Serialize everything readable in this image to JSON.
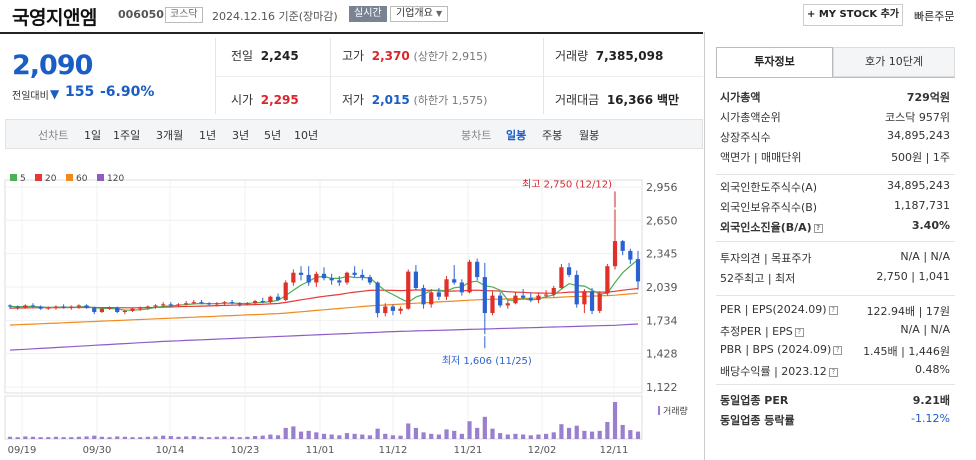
{
  "header": {
    "name": "국영지앤엠",
    "code": "006050",
    "market": "코스닥",
    "date": "2024.12.16",
    "basis": "기준(장마감)",
    "live_label": "실시간",
    "corp_label": "기업개요",
    "mystock_label": "+ MY STOCK 추가",
    "quick_order": "빠른주문"
  },
  "quote": {
    "price": "2,090",
    "compare_label": "전일대비",
    "compare_value": "155",
    "compare_pct": "-6.90%",
    "prev_close_label": "전일",
    "prev_close": "2,245",
    "open_label": "시가",
    "open": "2,295",
    "high_label": "고가",
    "high": "2,370",
    "upper_limit": "(상한가 2,915)",
    "low_label": "저가",
    "low": "2,015",
    "lower_limit": "(하한가 1,575)",
    "volume_label": "거래량",
    "volume": "7,385,098",
    "amount_label": "거래대금",
    "amount": "16,366",
    "amount_unit": "백만"
  },
  "tabs": {
    "line_chart": "선차트",
    "line_periods": [
      "1일",
      "1주일",
      "3개월",
      "1년",
      "3년",
      "5년",
      "10년"
    ],
    "candle_chart": "봉차트",
    "candle_periods": [
      "일봉",
      "주봉",
      "월봉"
    ],
    "active": "일봉"
  },
  "chart_data": {
    "type": "line",
    "legend": [
      {
        "name": "5",
        "color": "#4caf50"
      },
      {
        "name": "20",
        "color": "#e53935"
      },
      {
        "name": "60",
        "color": "#f08a1e"
      },
      {
        "name": "120",
        "color": "#8e5cc9"
      }
    ],
    "y_ticks": [
      "2,956",
      "2,650",
      "2,345",
      "2,039",
      "1,734",
      "1,428",
      "1,122"
    ],
    "ylim": [
      1122,
      2956
    ],
    "x_ticks": [
      "09/19",
      "09/30",
      "10/14",
      "10/23",
      "11/01",
      "11/12",
      "11/21",
      "12/02",
      "12/11"
    ],
    "high_annotation": "최고 2,750 (12/12)",
    "low_annotation": "최저 1,606 (11/25)",
    "volume_label": "거래량",
    "candles": [
      [
        1870,
        1880,
        1840,
        1860
      ],
      [
        1860,
        1870,
        1830,
        1850
      ],
      [
        1850,
        1880,
        1840,
        1870
      ],
      [
        1870,
        1890,
        1850,
        1860
      ],
      [
        1860,
        1870,
        1830,
        1840
      ],
      [
        1840,
        1860,
        1830,
        1850
      ],
      [
        1850,
        1870,
        1830,
        1860
      ],
      [
        1860,
        1880,
        1840,
        1850
      ],
      [
        1850,
        1870,
        1830,
        1860
      ],
      [
        1860,
        1880,
        1840,
        1870
      ],
      [
        1870,
        1880,
        1840,
        1850
      ],
      [
        1850,
        1860,
        1790,
        1810
      ],
      [
        1810,
        1850,
        1800,
        1840
      ],
      [
        1840,
        1860,
        1830,
        1850
      ],
      [
        1850,
        1860,
        1800,
        1810
      ],
      [
        1810,
        1830,
        1790,
        1820
      ],
      [
        1820,
        1850,
        1810,
        1840
      ],
      [
        1840,
        1860,
        1820,
        1850
      ],
      [
        1850,
        1870,
        1830,
        1860
      ],
      [
        1860,
        1880,
        1840,
        1870
      ],
      [
        1870,
        1900,
        1850,
        1880
      ],
      [
        1880,
        1900,
        1860,
        1870
      ],
      [
        1870,
        1890,
        1860,
        1880
      ],
      [
        1880,
        1910,
        1870,
        1890
      ],
      [
        1890,
        1920,
        1880,
        1900
      ],
      [
        1900,
        1920,
        1880,
        1890
      ],
      [
        1890,
        1900,
        1870,
        1880
      ],
      [
        1880,
        1900,
        1860,
        1890
      ],
      [
        1890,
        1910,
        1870,
        1900
      ],
      [
        1900,
        1920,
        1880,
        1890
      ],
      [
        1890,
        1900,
        1860,
        1880
      ],
      [
        1880,
        1900,
        1870,
        1890
      ],
      [
        1890,
        1920,
        1880,
        1910
      ],
      [
        1910,
        1940,
        1890,
        1900
      ],
      [
        1900,
        1960,
        1890,
        1950
      ],
      [
        1950,
        1980,
        1910,
        1920
      ],
      [
        1920,
        2100,
        1910,
        2080
      ],
      [
        2080,
        2200,
        2050,
        2170
      ],
      [
        2170,
        2230,
        2100,
        2150
      ],
      [
        2150,
        2230,
        2050,
        2080
      ],
      [
        2080,
        2180,
        2040,
        2160
      ],
      [
        2160,
        2220,
        2100,
        2120
      ],
      [
        2120,
        2160,
        2060,
        2100
      ],
      [
        2100,
        2140,
        2050,
        2080
      ],
      [
        2080,
        2180,
        2060,
        2170
      ],
      [
        2170,
        2230,
        2130,
        2150
      ],
      [
        2150,
        2200,
        2100,
        2130
      ],
      [
        2130,
        2150,
        2060,
        2080
      ],
      [
        2080,
        2090,
        1760,
        1800
      ],
      [
        1800,
        1890,
        1770,
        1860
      ],
      [
        1860,
        1880,
        1780,
        1820
      ],
      [
        1820,
        1860,
        1790,
        1840
      ],
      [
        1840,
        2200,
        1830,
        2180
      ],
      [
        2180,
        2240,
        2010,
        2030
      ],
      [
        2030,
        2060,
        1840,
        1880
      ],
      [
        1880,
        2020,
        1850,
        1990
      ],
      [
        1990,
        2030,
        1920,
        1950
      ],
      [
        1950,
        2140,
        1920,
        2110
      ],
      [
        2110,
        2240,
        2060,
        2080
      ],
      [
        2080,
        2110,
        1960,
        1990
      ],
      [
        1990,
        2290,
        1980,
        2270
      ],
      [
        2270,
        2300,
        2100,
        2130
      ],
      [
        2130,
        2260,
        1606,
        1800
      ],
      [
        1800,
        2000,
        1780,
        1960
      ],
      [
        1960,
        1990,
        1850,
        1870
      ],
      [
        1870,
        1920,
        1840,
        1890
      ],
      [
        1890,
        1990,
        1880,
        1960
      ],
      [
        1960,
        2020,
        1920,
        1940
      ],
      [
        1940,
        1990,
        1900,
        1920
      ],
      [
        1920,
        1980,
        1890,
        1960
      ],
      [
        1960,
        2010,
        1940,
        1970
      ],
      [
        1970,
        2050,
        1950,
        2030
      ],
      [
        2030,
        2250,
        2020,
        2220
      ],
      [
        2220,
        2260,
        2130,
        2150
      ],
      [
        2150,
        2190,
        1850,
        1880
      ],
      [
        1880,
        2020,
        1800,
        2000
      ],
      [
        2000,
        2030,
        1790,
        1820
      ],
      [
        1820,
        2000,
        1800,
        1980
      ],
      [
        1980,
        2250,
        1960,
        2230
      ],
      [
        2230,
        2750,
        2200,
        2460
      ],
      [
        2460,
        2470,
        2330,
        2370
      ],
      [
        2370,
        2390,
        2250,
        2290
      ],
      [
        2295,
        2370,
        2015,
        2090
      ]
    ],
    "ma5": [
      1860,
      1858,
      1860,
      1862,
      1856,
      1852,
      1854,
      1856,
      1852,
      1856,
      1860,
      1848,
      1844,
      1842,
      1838,
      1826,
      1826,
      1832,
      1838,
      1852,
      1862,
      1866,
      1872,
      1878,
      1884,
      1888,
      1886,
      1886,
      1890,
      1892,
      1888,
      1888,
      1894,
      1898,
      1906,
      1916,
      1960,
      2010,
      2056,
      2090,
      2130,
      2136,
      2118,
      2118,
      2136,
      2126,
      2126,
      2122,
      2062,
      2004,
      1970,
      1932,
      1900,
      1946,
      1970,
      2010,
      2010,
      2004,
      2032,
      2040,
      2084,
      2092,
      2050,
      2040,
      2010,
      1920,
      1916,
      1932,
      1918,
      1930,
      1950,
      1966,
      2020,
      2070,
      2052,
      2048,
      2010,
      1974,
      1982,
      2080,
      2170,
      2232,
      2290
    ],
    "ma20": [
      1845,
      1846,
      1847,
      1848,
      1849,
      1849,
      1850,
      1850,
      1851,
      1851,
      1852,
      1851,
      1850,
      1850,
      1849,
      1848,
      1848,
      1849,
      1850,
      1852,
      1854,
      1856,
      1858,
      1860,
      1862,
      1864,
      1866,
      1868,
      1870,
      1872,
      1874,
      1876,
      1878,
      1880,
      1884,
      1888,
      1898,
      1910,
      1922,
      1932,
      1944,
      1954,
      1962,
      1970,
      1982,
      1992,
      2000,
      2008,
      2010,
      2010,
      2008,
      2006,
      2008,
      2012,
      2010,
      2008,
      2004,
      2000,
      2002,
      2004,
      2008,
      2010,
      2006,
      2004,
      2002,
      1996,
      1992,
      1990,
      1986,
      1984,
      1982,
      1982,
      1986,
      1992,
      1992,
      1994,
      1994,
      1992,
      1992,
      2000,
      2010,
      2018,
      2024
    ],
    "ma60": [
      1690,
      1693,
      1696,
      1699,
      1702,
      1705,
      1708,
      1711,
      1714,
      1717,
      1720,
      1723,
      1726,
      1729,
      1732,
      1735,
      1738,
      1741,
      1744,
      1747,
      1750,
      1753,
      1756,
      1759,
      1762,
      1765,
      1768,
      1771,
      1774,
      1777,
      1780,
      1783,
      1786,
      1789,
      1792,
      1795,
      1800,
      1806,
      1812,
      1818,
      1824,
      1830,
      1836,
      1842,
      1848,
      1854,
      1860,
      1866,
      1870,
      1874,
      1878,
      1882,
      1886,
      1890,
      1894,
      1898,
      1902,
      1906,
      1910,
      1914,
      1918,
      1922,
      1924,
      1926,
      1928,
      1930,
      1932,
      1934,
      1936,
      1938,
      1940,
      1942,
      1946,
      1950,
      1952,
      1954,
      1956,
      1958,
      1960,
      1964,
      1970,
      1976,
      1982
    ],
    "ma120": [
      1460,
      1464,
      1468,
      1472,
      1476,
      1480,
      1484,
      1488,
      1492,
      1496,
      1500,
      1504,
      1508,
      1512,
      1516,
      1520,
      1524,
      1528,
      1532,
      1536,
      1540,
      1543,
      1546,
      1549,
      1552,
      1555,
      1558,
      1561,
      1564,
      1567,
      1570,
      1573,
      1576,
      1579,
      1582,
      1585,
      1588,
      1591,
      1594,
      1597,
      1600,
      1603,
      1606,
      1609,
      1612,
      1615,
      1618,
      1621,
      1624,
      1627,
      1630,
      1632,
      1634,
      1636,
      1638,
      1640,
      1642,
      1644,
      1646,
      1648,
      1650,
      1652,
      1654,
      1656,
      1658,
      1660,
      1662,
      1664,
      1666,
      1668,
      1670,
      1672,
      1674,
      1676,
      1678,
      1680,
      1682,
      1684,
      1686,
      1688,
      1692,
      1696,
      1700
    ],
    "volume": [
      6,
      5,
      7,
      6,
      5,
      5,
      6,
      5,
      5,
      6,
      7,
      9,
      6,
      5,
      7,
      6,
      5,
      5,
      6,
      7,
      9,
      8,
      6,
      7,
      8,
      6,
      5,
      6,
      7,
      6,
      5,
      6,
      8,
      9,
      12,
      10,
      30,
      34,
      20,
      22,
      18,
      14,
      12,
      10,
      16,
      14,
      12,
      10,
      28,
      14,
      10,
      9,
      42,
      30,
      18,
      14,
      12,
      26,
      22,
      14,
      48,
      30,
      60,
      28,
      16,
      12,
      14,
      12,
      10,
      12,
      14,
      18,
      40,
      30,
      36,
      22,
      20,
      22,
      46,
      100,
      38,
      24,
      20
    ]
  },
  "panel": {
    "tab_info": "투자정보",
    "tab_orderbook": "호가 10단계",
    "rows1": [
      {
        "k": "시가총액",
        "v": "729억원",
        "bold": true
      },
      {
        "k": "시가총액순위",
        "v": "코스닥 957위"
      },
      {
        "k": "상장주식수",
        "v": "34,895,243"
      },
      {
        "k": "액면가 | 매매단위",
        "v": "500원 | 1주"
      }
    ],
    "rows2": [
      {
        "k": "외국인한도주식수(A)",
        "v": "34,895,243"
      },
      {
        "k": "외국인보유주식수(B)",
        "v": "1,187,731"
      },
      {
        "k": "외국인소진율(B/A)",
        "v": "3.40%",
        "bold": true
      }
    ],
    "rows3": [
      {
        "k": "투자의견 | 목표주가",
        "v": "N/A | N/A"
      },
      {
        "k": "52주최고 | 최저",
        "v": "2,750 | 1,041"
      }
    ],
    "rows4": [
      {
        "k": "PER | EPS(2024.09)",
        "v": "122.94배 | 17원"
      },
      {
        "k": "추정PER | EPS",
        "v": "N/A | N/A"
      },
      {
        "k": "PBR | BPS (2024.09)",
        "v": "1.45배 | 1,446원"
      },
      {
        "k": "배당수익률 | 2023.12",
        "v": "0.48%"
      }
    ],
    "rows5": [
      {
        "k": "동일업종 PER",
        "v": "9.21배",
        "bold": true
      },
      {
        "k": "동일업종 등락률",
        "v": "-1.12%",
        "blue": true
      }
    ]
  }
}
